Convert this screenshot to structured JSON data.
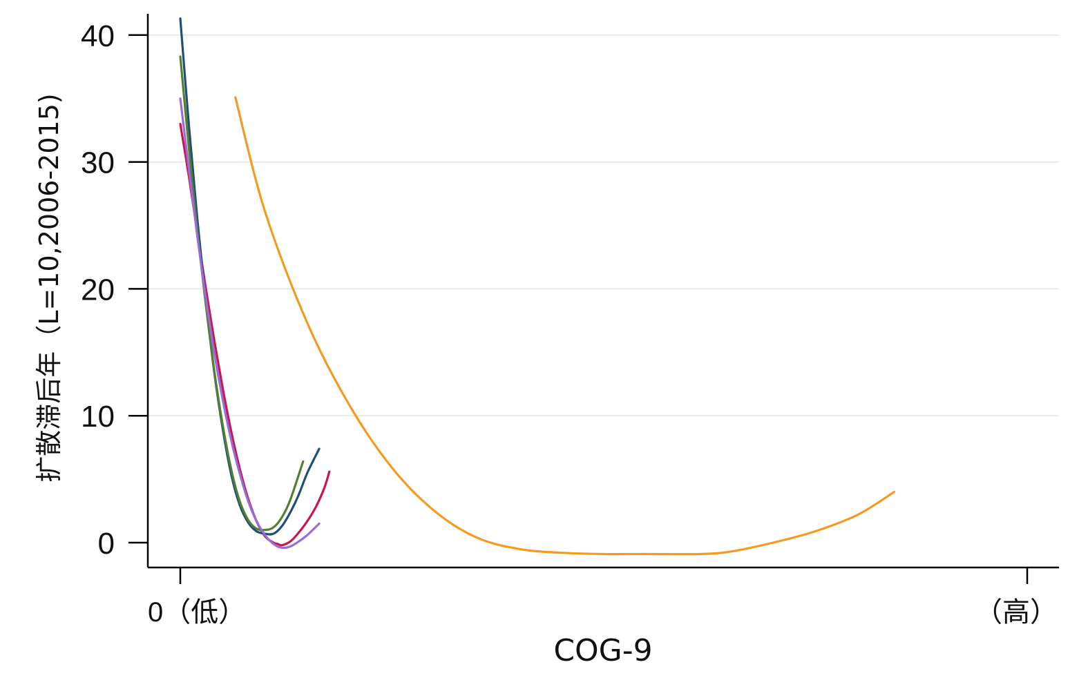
{
  "chart_data": {
    "type": "line",
    "title": "",
    "xlabel": "COG-9",
    "ylabel": "扩散滞后年（L=10,2006-2015)",
    "xlim": [
      0,
      100
    ],
    "ylim": [
      -2,
      42
    ],
    "y_ticks": [
      0,
      10,
      20,
      30,
      40
    ],
    "x_ticks": [
      {
        "value": 0,
        "label": "0（低）"
      },
      {
        "value": 100,
        "label": "（高）"
      }
    ],
    "grid": "horizontal",
    "legend": "none",
    "series": [
      {
        "color": "#f39a1f",
        "x": [
          6.5,
          10,
          15,
          20,
          25,
          30,
          35,
          40,
          45,
          50,
          55,
          61.3,
          65,
          70,
          75,
          80,
          84.3
        ],
        "y": [
          35.1,
          26.1,
          17.3,
          10.8,
          5.9,
          2.5,
          0.4,
          -0.5,
          -0.8,
          -0.9,
          -0.9,
          -0.9,
          -0.7,
          0.0,
          0.9,
          2.2,
          4.0
        ]
      },
      {
        "color": "#c8174e",
        "x": [
          0.0,
          1.0,
          2.0,
          3.0,
          4.0,
          5.0,
          6.0,
          7.0,
          8.0,
          9.0,
          10.0,
          11.0,
          11.5,
          12.0,
          13.0,
          14.0,
          15.0,
          16.0,
          17.0,
          17.6
        ],
        "y": [
          33.0,
          28.9,
          24.5,
          20.1,
          16.0,
          12.2,
          8.8,
          5.9,
          3.5,
          1.7,
          0.5,
          0.0,
          -0.1,
          -0.2,
          0.1,
          0.8,
          1.7,
          2.8,
          4.3,
          5.6
        ]
      },
      {
        "color": "#1f4e7a",
        "x": [
          0.0,
          1.0,
          2.0,
          3.0,
          4.0,
          5.0,
          6.0,
          7.0,
          8.0,
          9.0,
          10.0,
          11.0,
          12.0,
          13.0,
          14.0,
          15.0,
          16.4
        ],
        "y": [
          41.3,
          33.0,
          25.6,
          19.0,
          13.5,
          9.0,
          5.4,
          3.0,
          1.6,
          0.9,
          0.7,
          0.7,
          1.3,
          2.4,
          3.8,
          5.5,
          7.4
        ]
      },
      {
        "color": "#527f32",
        "x": [
          0.0,
          1.0,
          2.0,
          3.0,
          4.0,
          5.0,
          6.0,
          7.0,
          8.0,
          9.0,
          10.0,
          11.0,
          12.0,
          13.0,
          14.5
        ],
        "y": [
          38.3,
          31.2,
          24.6,
          18.8,
          13.6,
          9.3,
          5.8,
          3.3,
          1.8,
          1.1,
          1.0,
          1.2,
          2.0,
          3.4,
          6.4
        ]
      },
      {
        "color": "#9a6cd6",
        "x": [
          0.0,
          1.0,
          2.0,
          3.0,
          4.0,
          5.0,
          6.0,
          7.0,
          8.0,
          9.0,
          10.0,
          11.0,
          12.0,
          13.0,
          14.0,
          15.0,
          16.4
        ],
        "y": [
          35.0,
          29.5,
          24.2,
          19.3,
          15.0,
          11.3,
          8.1,
          5.5,
          3.3,
          1.7,
          0.6,
          -0.1,
          -0.4,
          -0.3,
          0.1,
          0.6,
          1.5
        ]
      }
    ]
  }
}
